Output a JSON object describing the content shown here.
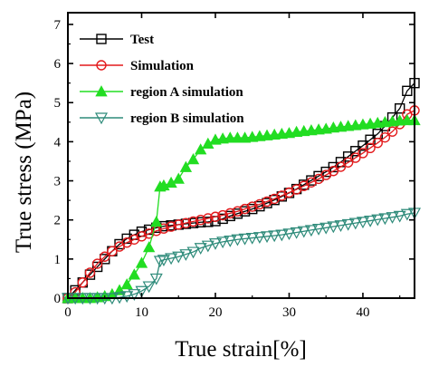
{
  "chart_data": {
    "type": "line",
    "xlabel": "True strain[%]",
    "ylabel": "True stress (MPa)",
    "xlim": [
      0,
      47
    ],
    "ylim": [
      0,
      7.3
    ],
    "x_ticks": [
      0,
      10,
      20,
      30,
      40
    ],
    "y_ticks": [
      0,
      1,
      2,
      3,
      4,
      5,
      6,
      7
    ],
    "x_tick_labels": [
      "0",
      "10",
      "20",
      "30",
      "40"
    ],
    "y_tick_labels": [
      "0",
      "1",
      "2",
      "3",
      "4",
      "5",
      "6",
      "7"
    ],
    "grid": false,
    "legend_position": "top-left",
    "series": [
      {
        "name": "Test",
        "color": "#000000",
        "marker": "square",
        "x": [
          0,
          1,
          2,
          3,
          4,
          5,
          6,
          7,
          8,
          9,
          10,
          11,
          12,
          13,
          14,
          15,
          16,
          17,
          18,
          19,
          20,
          21,
          22,
          23,
          24,
          25,
          26,
          27,
          28,
          29,
          30,
          31,
          32,
          33,
          34,
          35,
          36,
          37,
          38,
          39,
          40,
          41,
          42,
          43,
          44,
          45,
          46,
          47
        ],
        "y": [
          0.0,
          0.2,
          0.4,
          0.6,
          0.8,
          1.0,
          1.2,
          1.38,
          1.52,
          1.62,
          1.7,
          1.75,
          1.8,
          1.84,
          1.86,
          1.88,
          1.9,
          1.92,
          1.94,
          1.95,
          1.97,
          2.03,
          2.1,
          2.16,
          2.22,
          2.28,
          2.35,
          2.43,
          2.51,
          2.6,
          2.69,
          2.79,
          2.9,
          3.01,
          3.12,
          3.23,
          3.35,
          3.48,
          3.62,
          3.76,
          3.9,
          4.05,
          4.2,
          4.4,
          4.62,
          4.85,
          5.3,
          5.5
        ]
      },
      {
        "name": "Simulation",
        "color": "#e31a1c",
        "marker": "circle",
        "x": [
          0,
          1,
          2,
          3,
          4,
          5,
          6,
          7,
          8,
          9,
          10,
          11,
          12,
          13,
          14,
          15,
          16,
          17,
          18,
          19,
          20,
          21,
          22,
          23,
          24,
          25,
          26,
          27,
          28,
          29,
          30,
          31,
          32,
          33,
          34,
          35,
          36,
          37,
          38,
          39,
          40,
          41,
          42,
          43,
          44,
          45,
          46,
          47
        ],
        "y": [
          0.0,
          0.15,
          0.4,
          0.65,
          0.88,
          1.06,
          1.2,
          1.32,
          1.42,
          1.5,
          1.58,
          1.65,
          1.72,
          1.78,
          1.83,
          1.88,
          1.92,
          1.96,
          2.0,
          2.04,
          2.08,
          2.12,
          2.17,
          2.22,
          2.28,
          2.34,
          2.4,
          2.47,
          2.54,
          2.62,
          2.7,
          2.78,
          2.87,
          2.96,
          3.05,
          3.15,
          3.25,
          3.36,
          3.47,
          3.59,
          3.71,
          3.84,
          3.97,
          4.11,
          4.26,
          4.45,
          4.7,
          4.8
        ]
      },
      {
        "name": "region A simulation",
        "color": "#22dd22",
        "marker": "triangle-up",
        "x": [
          0,
          1,
          2,
          3,
          4,
          5,
          6,
          7,
          8,
          9,
          10,
          11,
          12,
          12.5,
          13,
          14,
          15,
          16,
          17,
          18,
          19,
          20,
          21,
          22,
          23,
          24,
          25,
          26,
          27,
          28,
          29,
          30,
          31,
          32,
          33,
          34,
          35,
          36,
          37,
          38,
          39,
          40,
          41,
          42,
          43,
          44,
          45,
          46,
          47
        ],
        "y": [
          0.0,
          0.0,
          0.0,
          0.0,
          0.02,
          0.05,
          0.1,
          0.2,
          0.35,
          0.6,
          0.9,
          1.3,
          1.95,
          2.85,
          2.88,
          2.95,
          3.05,
          3.35,
          3.55,
          3.8,
          3.95,
          4.05,
          4.08,
          4.1,
          4.1,
          4.1,
          4.12,
          4.14,
          4.16,
          4.18,
          4.2,
          4.22,
          4.25,
          4.27,
          4.29,
          4.31,
          4.33,
          4.36,
          4.38,
          4.4,
          4.42,
          4.44,
          4.46,
          4.48,
          4.5,
          4.52,
          4.54,
          4.55,
          4.55
        ]
      },
      {
        "name": "region B simulation",
        "color": "#2e8b7a",
        "marker": "triangle-down",
        "x": [
          0,
          1,
          2,
          3,
          4,
          5,
          6,
          7,
          8,
          9,
          10,
          11,
          12,
          12.5,
          13,
          14,
          15,
          16,
          17,
          18,
          19,
          20,
          21,
          22,
          23,
          24,
          25,
          26,
          27,
          28,
          29,
          30,
          31,
          32,
          33,
          34,
          35,
          36,
          37,
          38,
          39,
          40,
          41,
          42,
          43,
          44,
          45,
          46,
          47
        ],
        "y": [
          0.0,
          0.0,
          0.0,
          0.0,
          0.0,
          0.0,
          0.0,
          0.02,
          0.05,
          0.1,
          0.18,
          0.3,
          0.5,
          0.95,
          0.98,
          1.02,
          1.06,
          1.12,
          1.18,
          1.28,
          1.34,
          1.4,
          1.44,
          1.47,
          1.5,
          1.52,
          1.54,
          1.56,
          1.58,
          1.6,
          1.62,
          1.65,
          1.68,
          1.71,
          1.74,
          1.77,
          1.8,
          1.83,
          1.86,
          1.89,
          1.92,
          1.95,
          1.98,
          2.01,
          2.04,
          2.07,
          2.1,
          2.15,
          2.18
        ]
      }
    ]
  }
}
